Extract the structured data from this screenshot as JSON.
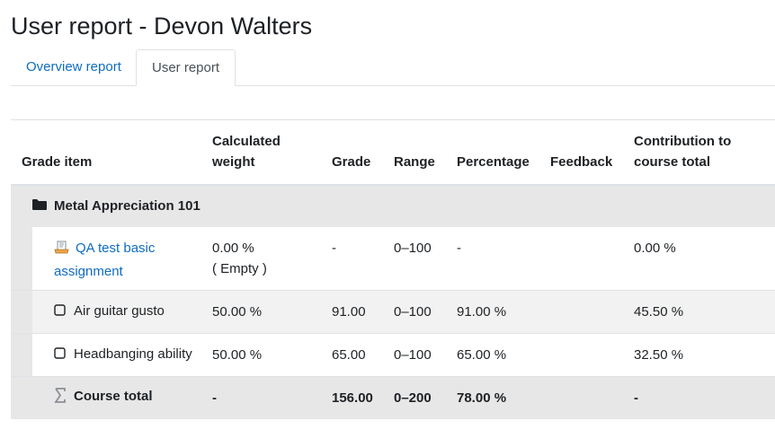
{
  "page": {
    "title": "User report - Devon Walters"
  },
  "tabs": [
    {
      "label": "Overview report"
    },
    {
      "label": "User report"
    }
  ],
  "table": {
    "headers": {
      "grade_item": "Grade item",
      "calculated_weight": "Calculated weight",
      "grade": "Grade",
      "range": "Range",
      "percentage": "Percentage",
      "feedback": "Feedback",
      "contribution": "Contribution to course total"
    },
    "category": {
      "name": "Metal Appreciation 101",
      "icon": "folder-icon"
    },
    "rows": [
      {
        "name": "QA test basic assignment",
        "icon": "assignment-icon",
        "weight": "0.00 %",
        "weight_note": "( Empty )",
        "grade": "-",
        "range": "0–100",
        "percentage": "-",
        "feedback": "",
        "contribution": "0.00 %"
      },
      {
        "name": "Air guitar gusto",
        "icon": "checkbox-icon",
        "weight": "50.00 %",
        "grade": "91.00",
        "range": "0–100",
        "percentage": "91.00 %",
        "feedback": "",
        "contribution": "45.50 %"
      },
      {
        "name": "Headbanging ability",
        "icon": "checkbox-icon",
        "weight": "50.00 %",
        "grade": "65.00",
        "range": "0–100",
        "percentage": "65.00 %",
        "feedback": "",
        "contribution": "32.50 %"
      }
    ],
    "total": {
      "name": "Course total",
      "icon": "sigma-icon",
      "weight": "-",
      "grade": "156.00",
      "range": "0–200",
      "percentage": "78.00 %",
      "feedback": "",
      "contribution": "-"
    }
  },
  "colors": {
    "link": "#0f6cbf",
    "category_bg": "#e7e7e7",
    "stripe_bg": "#f2f2f2",
    "border": "#dee2e6"
  }
}
